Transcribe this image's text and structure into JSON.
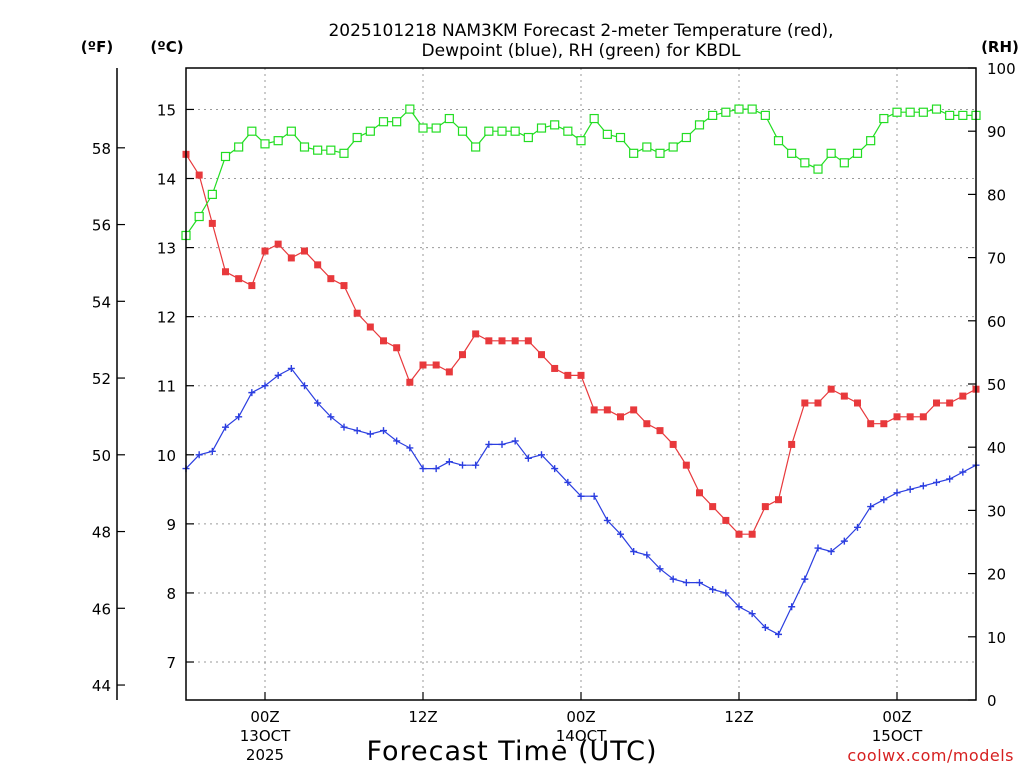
{
  "chart_data": {
    "type": "line",
    "title_line1": "2025101218 NAM3KM Forecast 2-meter Temperature (red),",
    "title_line2": "Dewpoint (blue), RH (green) for KBDL",
    "xlabel": "Forecast Time (UTC)",
    "credit": "coolwx.com/models",
    "left_outer_unit": "(ºF)",
    "left_inner_unit": "(ºC)",
    "right_unit": "(RH)",
    "celsius_ticks": [
      7,
      8,
      9,
      10,
      11,
      12,
      13,
      14,
      15
    ],
    "celsius_range": [
      6.45,
      15.6
    ],
    "fahrenheit_ticks": [
      44,
      46,
      48,
      50,
      52,
      54,
      56,
      58
    ],
    "rh_ticks": [
      0,
      10,
      20,
      30,
      40,
      50,
      60,
      70,
      80,
      90,
      100
    ],
    "rh_range": [
      0,
      100
    ],
    "x_range": [
      18,
      78
    ],
    "x_ticks": [
      {
        "hour": 24,
        "label": "00Z",
        "sub1": "13OCT",
        "sub2": "2025"
      },
      {
        "hour": 36,
        "label": "12Z",
        "sub1": "",
        "sub2": ""
      },
      {
        "hour": 48,
        "label": "00Z",
        "sub1": "14OCT",
        "sub2": ""
      },
      {
        "hour": 60,
        "label": "12Z",
        "sub1": "",
        "sub2": ""
      },
      {
        "hour": 72,
        "label": "00Z",
        "sub1": "15OCT",
        "sub2": ""
      }
    ],
    "hours": [
      18,
      19,
      20,
      21,
      22,
      23,
      24,
      25,
      26,
      27,
      28,
      29,
      30,
      31,
      32,
      33,
      34,
      35,
      36,
      37,
      38,
      39,
      40,
      41,
      42,
      43,
      44,
      45,
      46,
      47,
      48,
      49,
      50,
      51,
      52,
      53,
      54,
      55,
      56,
      57,
      58,
      59,
      60,
      61,
      62,
      63,
      64,
      65,
      66,
      67,
      68,
      69,
      70,
      71,
      72,
      73,
      74,
      75,
      76,
      77,
      78
    ],
    "series": [
      {
        "name": "2-meter Temperature",
        "axis": "C",
        "color": "#e8393c",
        "marker": "filled-square",
        "values": [
          14.35,
          14.05,
          13.35,
          12.65,
          12.55,
          12.45,
          12.95,
          13.05,
          12.85,
          12.95,
          12.75,
          12.55,
          12.45,
          12.05,
          11.85,
          11.65,
          11.55,
          11.05,
          11.3,
          11.3,
          11.2,
          11.45,
          11.75,
          11.65,
          11.65,
          11.65,
          11.65,
          11.45,
          11.25,
          11.15,
          11.15,
          10.65,
          10.65,
          10.55,
          10.65,
          10.45,
          10.35,
          10.15,
          9.85,
          9.45,
          9.25,
          9.05,
          8.85,
          8.85,
          9.25,
          9.35,
          10.15,
          10.75,
          10.75,
          10.95,
          10.85,
          10.75,
          10.45,
          10.45,
          10.55,
          10.55,
          10.55,
          10.75,
          10.75,
          10.85,
          10.95
        ]
      },
      {
        "name": "Dewpoint",
        "axis": "C",
        "color": "#2b3ee0",
        "marker": "plus",
        "values": [
          9.8,
          10.0,
          10.05,
          10.4,
          10.55,
          10.9,
          11.0,
          11.15,
          11.25,
          11.0,
          10.75,
          10.55,
          10.4,
          10.35,
          10.3,
          10.35,
          10.2,
          10.1,
          9.8,
          9.8,
          9.9,
          9.85,
          9.85,
          10.15,
          10.15,
          10.2,
          9.95,
          10.0,
          9.8,
          9.6,
          9.4,
          9.4,
          9.05,
          8.85,
          8.6,
          8.55,
          8.35,
          8.2,
          8.15,
          8.15,
          8.05,
          8.0,
          7.8,
          7.7,
          7.5,
          7.4,
          7.8,
          8.2,
          8.65,
          8.6,
          8.75,
          8.95,
          9.25,
          9.35,
          9.45,
          9.5,
          9.55,
          9.6,
          9.65,
          9.75,
          9.85
        ]
      },
      {
        "name": "RH",
        "axis": "RH",
        "color": "#22dd22",
        "marker": "open-square",
        "values": [
          73.5,
          76.5,
          80,
          86,
          87.5,
          90,
          88,
          88.5,
          90,
          87.5,
          87,
          87,
          86.5,
          89,
          90,
          91.5,
          91.5,
          93.5,
          90.5,
          90.5,
          92,
          90,
          87.5,
          90,
          90,
          90,
          89,
          90.5,
          91,
          90,
          88.5,
          92,
          89.5,
          89,
          86.5,
          87.5,
          86.5,
          87.5,
          89,
          91,
          92.5,
          93,
          93.5,
          93.5,
          92.5,
          88.5,
          86.5,
          85,
          84,
          86.5,
          85,
          86.5,
          88.5,
          92,
          93,
          93,
          93,
          93.5,
          92.5,
          92.5,
          92.5
        ]
      }
    ]
  }
}
